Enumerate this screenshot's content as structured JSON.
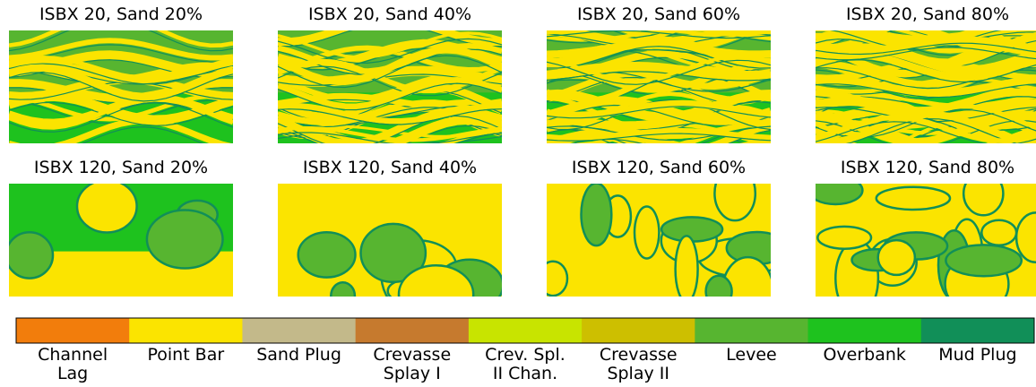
{
  "panels": [
    {
      "title": "ISBX 20, Sand 20%"
    },
    {
      "title": "ISBX 20, Sand 40%"
    },
    {
      "title": "ISBX 20, Sand 60%"
    },
    {
      "title": "ISBX 20, Sand 80%"
    },
    {
      "title": "ISBX 120, Sand 20%"
    },
    {
      "title": "ISBX 120, Sand 40%"
    },
    {
      "title": "ISBX 120, Sand 60%"
    },
    {
      "title": "ISBX 120, Sand 80%"
    }
  ],
  "legend": [
    {
      "label": [
        "Channel",
        "Lag"
      ],
      "color": "#f27d0c"
    },
    {
      "label": [
        "Point Bar"
      ],
      "color": "#fbe400"
    },
    {
      "label": [
        "Sand Plug"
      ],
      "color": "#c3b98a"
    },
    {
      "label": [
        "Crevasse",
        "Splay I"
      ],
      "color": "#c67a2e"
    },
    {
      "label": [
        "Crev. Spl.",
        "II Chan."
      ],
      "color": "#c8e400"
    },
    {
      "label": [
        "Crevasse",
        "Splay II"
      ],
      "color": "#cdbf00"
    },
    {
      "label": [
        "Levee"
      ],
      "color": "#57b530"
    },
    {
      "label": [
        "Overbank"
      ],
      "color": "#1ec21e"
    },
    {
      "label": [
        "Mud Plug"
      ],
      "color": "#118f58"
    }
  ]
}
